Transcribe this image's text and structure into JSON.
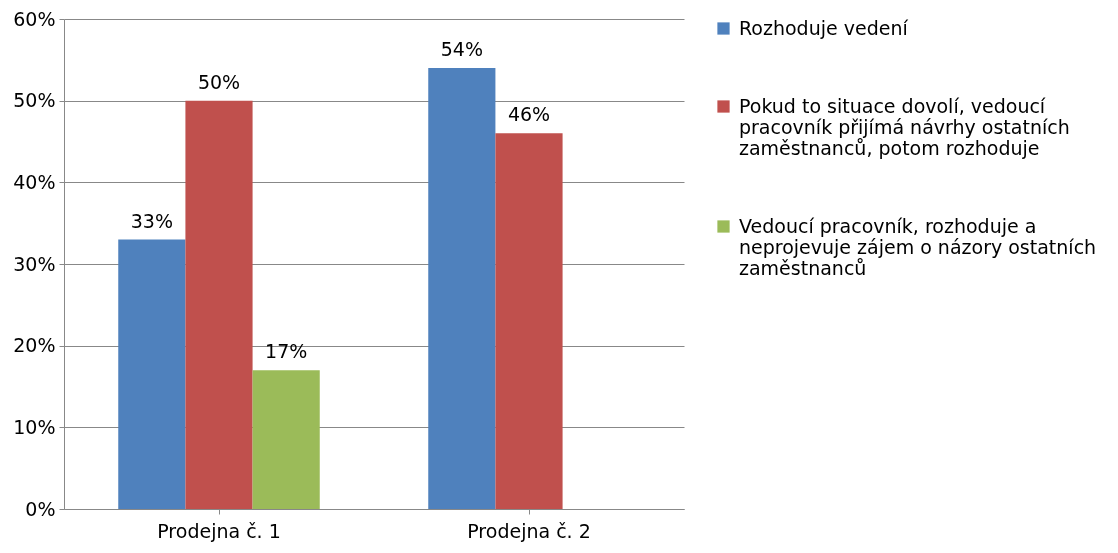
{
  "chart_data": {
    "type": "bar",
    "categories": [
      "Prodejna č. 1",
      "Prodejna č. 2"
    ],
    "series": [
      {
        "name": "Rozhoduje vedení",
        "color": "#4f81bd",
        "values": [
          33,
          54
        ],
        "value_labels": [
          "33%",
          "54%"
        ]
      },
      {
        "name": "Pokud to situace dovolí, vedoucí pracovník přijímá návrhy ostatních zaměstnanců, potom rozhoduje",
        "color": "#c0504d",
        "values": [
          50,
          46
        ],
        "value_labels": [
          "50%",
          "46%"
        ]
      },
      {
        "name": "Vedoucí pracovník, rozhoduje a neprojevuje zájem o názory ostatních zaměstnanců",
        "color": "#9bbb59",
        "values": [
          17,
          null
        ],
        "value_labels": [
          "17%",
          null
        ]
      }
    ],
    "ylim": [
      0,
      60
    ],
    "yticks": [
      {
        "value": 0,
        "label": "0%"
      },
      {
        "value": 10,
        "label": "10%"
      },
      {
        "value": 20,
        "label": "20%"
      },
      {
        "value": 30,
        "label": "30%"
      },
      {
        "value": 40,
        "label": "40%"
      },
      {
        "value": 50,
        "label": "50%"
      },
      {
        "value": 60,
        "label": "60%"
      }
    ],
    "grid": "y",
    "legend": "right"
  }
}
